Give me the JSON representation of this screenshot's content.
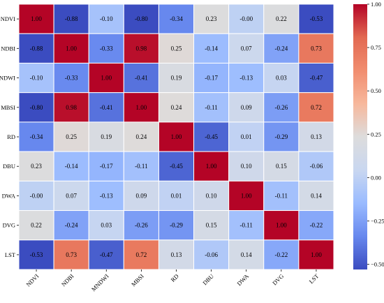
{
  "chart_data": {
    "type": "heatmap",
    "title": "",
    "xlabel": "",
    "ylabel": "",
    "variables": [
      "NDVI",
      "NDBI",
      "MNDWI",
      "MBSI",
      "RD",
      "DBU",
      "DWA",
      "DVG",
      "LST"
    ],
    "values": [
      [
        1.0,
        -0.88,
        -0.1,
        -0.8,
        -0.34,
        0.23,
        -0.0,
        0.22,
        -0.53
      ],
      [
        -0.88,
        1.0,
        -0.33,
        0.98,
        0.25,
        -0.14,
        0.07,
        -0.24,
        0.73
      ],
      [
        -0.1,
        -0.33,
        1.0,
        -0.41,
        0.19,
        -0.17,
        -0.13,
        0.03,
        -0.47
      ],
      [
        -0.8,
        0.98,
        -0.41,
        1.0,
        0.24,
        -0.11,
        0.09,
        -0.26,
        0.72
      ],
      [
        -0.34,
        0.25,
        0.19,
        0.24,
        1.0,
        -0.45,
        0.01,
        -0.29,
        0.13
      ],
      [
        0.23,
        -0.14,
        -0.17,
        -0.11,
        -0.45,
        1.0,
        0.1,
        0.15,
        -0.06
      ],
      [
        -0.0,
        0.07,
        -0.13,
        0.09,
        0.01,
        0.1,
        1.0,
        -0.11,
        0.14
      ],
      [
        0.22,
        -0.24,
        0.03,
        -0.26,
        -0.29,
        0.15,
        -0.11,
        1.0,
        -0.22
      ],
      [
        -0.53,
        0.73,
        -0.47,
        0.72,
        0.13,
        -0.06,
        0.14,
        -0.22,
        1.0
      ]
    ],
    "value_labels": [
      [
        "1.00",
        "-0.88",
        "-0.10",
        "-0.80",
        "-0.34",
        "0.23",
        "-0.00",
        "0.22",
        "-0.53"
      ],
      [
        "-0.88",
        "1.00",
        "-0.33",
        "0.98",
        "0.25",
        "-0.14",
        "0.07",
        "-0.24",
        "0.73"
      ],
      [
        "-0.10",
        "-0.33",
        "1.00",
        "-0.41",
        "0.19",
        "-0.17",
        "-0.13",
        "0.03",
        "-0.47"
      ],
      [
        "-0.80",
        "0.98",
        "-0.41",
        "1.00",
        "0.24",
        "-0.11",
        "0.09",
        "-0.26",
        "0.72"
      ],
      [
        "-0.34",
        "0.25",
        "0.19",
        "0.24",
        "1.00",
        "-0.45",
        "0.01",
        "-0.29",
        "0.13"
      ],
      [
        "0.23",
        "-0.14",
        "-0.17",
        "-0.11",
        "-0.45",
        "1.00",
        "0.10",
        "0.15",
        "-0.06"
      ],
      [
        "-0.00",
        "0.07",
        "-0.13",
        "0.09",
        "0.01",
        "0.10",
        "1.00",
        "-0.11",
        "0.14"
      ],
      [
        "0.22",
        "-0.24",
        "0.03",
        "-0.26",
        "-0.29",
        "0.15",
        "-0.11",
        "1.00",
        "-0.22"
      ],
      [
        "-0.53",
        "0.73",
        "-0.47",
        "0.72",
        "0.13",
        "-0.06",
        "0.14",
        "-0.22",
        "1.00"
      ]
    ],
    "colorbar": {
      "min": -0.53,
      "max": 1.0,
      "ticks": [
        1.0,
        0.75,
        0.5,
        0.25,
        0.0,
        -0.25,
        -0.5
      ],
      "tick_labels": [
        "1.00",
        "0.75",
        "0.50",
        "0.25",
        "0.00",
        "−0.25",
        "−0.50"
      ],
      "colormap": "coolwarm",
      "color_stops": [
        "#3b4cc0",
        "#6788ee",
        "#9abbff",
        "#c9d7f0",
        "#dddcdc",
        "#f7b89c",
        "#f18d6f",
        "#e26952",
        "#b40426"
      ]
    },
    "x_tick_rotation": "45 degrees",
    "grid": false,
    "legend": "colorbar-right"
  }
}
